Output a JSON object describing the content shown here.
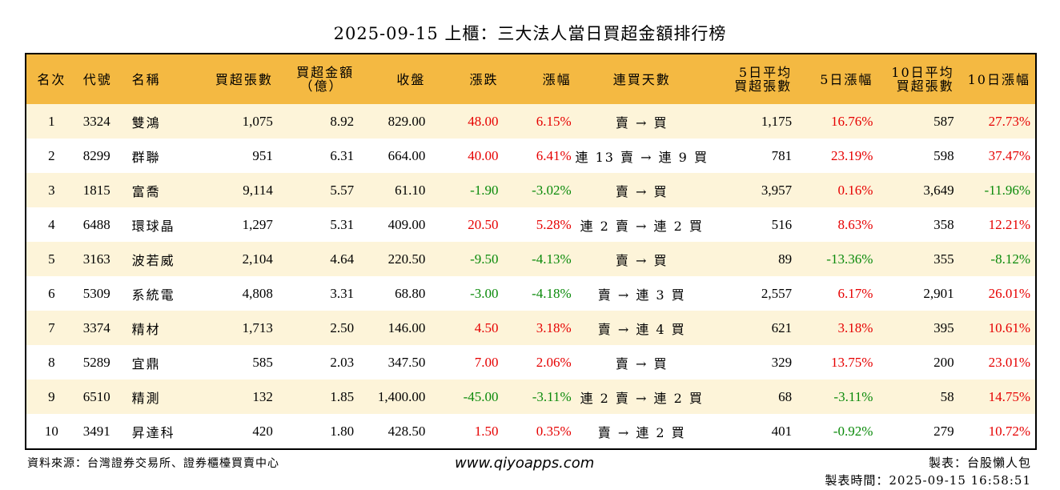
{
  "title": "2025-09-15 上櫃：三大法人當日買超金額排行榜",
  "headers": {
    "rank": "名次",
    "code": "代號",
    "name": "名稱",
    "buy_lots": "買超張數",
    "buy_amount_l1": "買超金額",
    "buy_amount_l2": "（億）",
    "close": "收盤",
    "change": "漲跌",
    "change_pct": "漲幅",
    "streak": "連買天數",
    "avg5_l1": "5日平均",
    "avg5_l2": "買超張數",
    "pct5": "5日漲幅",
    "avg10_l1": "10日平均",
    "avg10_l2": "買超張數",
    "pct10": "10日漲幅"
  },
  "rows": [
    {
      "rank": "1",
      "code": "3324",
      "name": "雙鴻",
      "buy_lots": "1,075",
      "buy_amount": "8.92",
      "close": "829.00",
      "change": "48.00",
      "change_pct": "6.15%",
      "streak": "賣 → 買",
      "avg5": "1,175",
      "pct5": "16.76%",
      "avg10": "587",
      "pct10": "27.73%"
    },
    {
      "rank": "2",
      "code": "8299",
      "name": "群聯",
      "buy_lots": "951",
      "buy_amount": "6.31",
      "close": "664.00",
      "change": "40.00",
      "change_pct": "6.41%",
      "streak": "連 13 賣 → 連 9 買",
      "avg5": "781",
      "pct5": "23.19%",
      "avg10": "598",
      "pct10": "37.47%"
    },
    {
      "rank": "3",
      "code": "1815",
      "name": "富喬",
      "buy_lots": "9,114",
      "buy_amount": "5.57",
      "close": "61.10",
      "change": "-1.90",
      "change_pct": "-3.02%",
      "streak": "賣 → 買",
      "avg5": "3,957",
      "pct5": "0.16%",
      "avg10": "3,649",
      "pct10": "-11.96%"
    },
    {
      "rank": "4",
      "code": "6488",
      "name": "環球晶",
      "buy_lots": "1,297",
      "buy_amount": "5.31",
      "close": "409.00",
      "change": "20.50",
      "change_pct": "5.28%",
      "streak": "連 2 賣 → 連 2 買",
      "avg5": "516",
      "pct5": "8.63%",
      "avg10": "358",
      "pct10": "12.21%"
    },
    {
      "rank": "5",
      "code": "3163",
      "name": "波若威",
      "buy_lots": "2,104",
      "buy_amount": "4.64",
      "close": "220.50",
      "change": "-9.50",
      "change_pct": "-4.13%",
      "streak": "賣 → 買",
      "avg5": "89",
      "pct5": "-13.36%",
      "avg10": "355",
      "pct10": "-8.12%"
    },
    {
      "rank": "6",
      "code": "5309",
      "name": "系統電",
      "buy_lots": "4,808",
      "buy_amount": "3.31",
      "close": "68.80",
      "change": "-3.00",
      "change_pct": "-4.18%",
      "streak": "賣 → 連 3 買",
      "avg5": "2,557",
      "pct5": "6.17%",
      "avg10": "2,901",
      "pct10": "26.01%"
    },
    {
      "rank": "7",
      "code": "3374",
      "name": "精材",
      "buy_lots": "1,713",
      "buy_amount": "2.50",
      "close": "146.00",
      "change": "4.50",
      "change_pct": "3.18%",
      "streak": "賣 → 連 4 買",
      "avg5": "621",
      "pct5": "3.18%",
      "avg10": "395",
      "pct10": "10.61%"
    },
    {
      "rank": "8",
      "code": "5289",
      "name": "宜鼎",
      "buy_lots": "585",
      "buy_amount": "2.03",
      "close": "347.50",
      "change": "7.00",
      "change_pct": "2.06%",
      "streak": "賣 → 買",
      "avg5": "329",
      "pct5": "13.75%",
      "avg10": "200",
      "pct10": "23.01%"
    },
    {
      "rank": "9",
      "code": "6510",
      "name": "精測",
      "buy_lots": "132",
      "buy_amount": "1.85",
      "close": "1,400.00",
      "change": "-45.00",
      "change_pct": "-3.11%",
      "streak": "連 2 賣 → 連 2 買",
      "avg5": "68",
      "pct5": "-3.11%",
      "avg10": "58",
      "pct10": "14.75%"
    },
    {
      "rank": "10",
      "code": "3491",
      "name": "昇達科",
      "buy_lots": "420",
      "buy_amount": "1.80",
      "close": "428.50",
      "change": "1.50",
      "change_pct": "0.35%",
      "streak": "賣 → 連 2 買",
      "avg5": "401",
      "pct5": "-0.92%",
      "avg10": "279",
      "pct10": "10.72%"
    }
  ],
  "footer": {
    "source": "資料來源：台灣證券交易所、證券櫃檯買賣中心",
    "website": "www.qiyoapps.com",
    "maker": "製表：台股懶人包",
    "made_time": "製表時間：2025-09-15 16:58:51"
  },
  "colors": {
    "header_bg": "#f4b942",
    "odd_row_bg": "#fdf4d9",
    "up": "#e60000",
    "down": "#0a8a0a"
  }
}
